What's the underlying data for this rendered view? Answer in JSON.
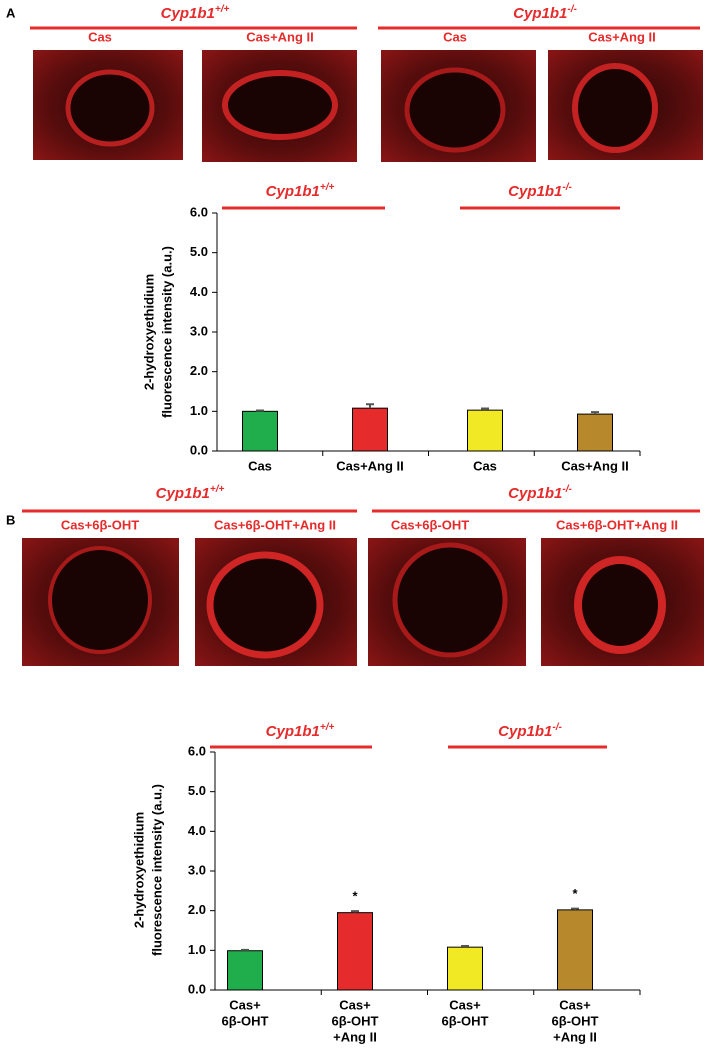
{
  "panels": [
    {
      "label": "A",
      "groups": [
        {
          "gene": "Cyp1b1",
          "genotype": "+/+",
          "images": [
            "Cas",
            "Cas+Ang II"
          ]
        },
        {
          "gene": "Cyp1b1",
          "genotype": "-/-",
          "images": [
            "Cas",
            "Cas+Ang II"
          ]
        }
      ]
    },
    {
      "label": "B",
      "groups": [
        {
          "gene": "Cyp1b1",
          "genotype": "+/+",
          "images": [
            "Cas+6β-OHT",
            "Cas+6β-OHT+Ang II"
          ]
        },
        {
          "gene": "Cyp1b1",
          "genotype": "-/-",
          "images": [
            "Cas+6β-OHT",
            "Cas+6β-OHT+Ang II"
          ]
        }
      ]
    }
  ],
  "chart_data": [
    {
      "type": "bar",
      "ylabel": [
        "2-hydroxyethidium",
        "fluorescence intensity (a.u.)"
      ],
      "groups": [
        {
          "gene": "Cyp1b1",
          "genotype": "+/+"
        },
        {
          "gene": "Cyp1b1",
          "genotype": "-/-"
        }
      ],
      "categories": [
        [
          "Cas"
        ],
        [
          "Cas+Ang II"
        ],
        [
          "Cas"
        ],
        [
          "Cas+Ang II"
        ]
      ],
      "values": [
        1.0,
        1.08,
        1.03,
        0.93
      ],
      "errors": [
        0.02,
        0.1,
        0.04,
        0.05
      ],
      "colors": [
        "#1fae4b",
        "#e52b2b",
        "#f2e925",
        "#b8892c"
      ],
      "ylim": [
        0,
        6
      ],
      "yticks": [
        {
          "value": 0,
          "label": "0.0"
        },
        {
          "value": 1,
          "label": "1.0"
        },
        {
          "value": 2,
          "label": "2.0"
        },
        {
          "value": 3,
          "label": "3.0"
        },
        {
          "value": 4,
          "label": "4.0"
        },
        {
          "value": 5,
          "label": "5.0"
        },
        {
          "value": 6,
          "label": "6.0"
        }
      ],
      "significance": [
        null,
        null,
        null,
        null
      ]
    },
    {
      "type": "bar",
      "ylabel": [
        "2-hydroxyethidium",
        "fluorescence intensity (a.u.)"
      ],
      "groups": [
        {
          "gene": "Cyp1b1",
          "genotype": "+/+"
        },
        {
          "gene": "Cyp1b1",
          "genotype": "-/-"
        }
      ],
      "categories": [
        [
          "Cas+",
          "6β-OHT"
        ],
        [
          "Cas+",
          "6β-OHT",
          "+Ang II"
        ],
        [
          "Cas+",
          "6β-OHT"
        ],
        [
          "Cas+",
          "6β-OHT",
          "+Ang II"
        ]
      ],
      "values": [
        0.99,
        1.95,
        1.08,
        2.02
      ],
      "errors": [
        0.02,
        0.04,
        0.03,
        0.03
      ],
      "colors": [
        "#1fae4b",
        "#e52b2b",
        "#f2e925",
        "#b8892c"
      ],
      "ylim": [
        0,
        6
      ],
      "yticks": [
        {
          "value": 0,
          "label": "0.0"
        },
        {
          "value": 1,
          "label": "1.0"
        },
        {
          "value": 2,
          "label": "2.0"
        },
        {
          "value": 3,
          "label": "3.0"
        },
        {
          "value": 4,
          "label": "4.0"
        },
        {
          "value": 5,
          "label": "5.0"
        },
        {
          "value": 6,
          "label": "6.0"
        }
      ],
      "significance": [
        null,
        "*",
        null,
        "*"
      ]
    }
  ]
}
